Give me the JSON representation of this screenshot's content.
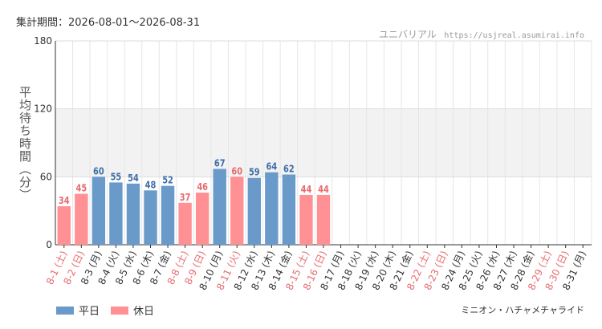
{
  "header": {
    "period_label": "集計期間：2026-08-01～2026-08-31",
    "source_name": "ユニバリアル",
    "source_url": "https://usjreal.asumirai.info"
  },
  "footer": {
    "attraction": "ミニオン・ハチャメチャライド"
  },
  "legend": [
    {
      "label": "平日",
      "color": "#6a9ac9"
    },
    {
      "label": "休日",
      "color": "#ff9093"
    }
  ],
  "colors": {
    "weekday_bar": "#6a9ac9",
    "holiday_bar": "#ff9093",
    "weekday_text": "#3f6fa6",
    "holiday_text": "#e86a6e",
    "band": "#f2f2f2",
    "grid": "#e6e6e6"
  },
  "chart_data": {
    "type": "bar",
    "ylabel": "平均待ち時間（分）",
    "xlabel": "",
    "ylim": [
      0,
      180
    ],
    "yticks": [
      0,
      60,
      120,
      180
    ],
    "shaded_band": [
      60,
      120
    ],
    "grid": true,
    "legend_position": "bottom-left",
    "categories": [
      "8-1 (土)",
      "8-2 (日)",
      "8-3 (月)",
      "8-4 (火)",
      "8-5 (水)",
      "8-6 (木)",
      "8-7 (金)",
      "8-8 (土)",
      "8-9 (日)",
      "8-10 (月)",
      "8-11 (火)",
      "8-12 (水)",
      "8-13 (木)",
      "8-14 (金)",
      "8-15 (土)",
      "8-16 (日)",
      "8-17 (月)",
      "8-18 (火)",
      "8-19 (水)",
      "8-20 (木)",
      "8-21 (金)",
      "8-22 (土)",
      "8-23 (日)",
      "8-24 (月)",
      "8-25 (火)",
      "8-26 (水)",
      "8-27 (木)",
      "8-28 (金)",
      "8-29 (土)",
      "8-30 (日)",
      "8-31 (月)"
    ],
    "holiday": [
      true,
      true,
      false,
      false,
      false,
      false,
      false,
      true,
      true,
      false,
      true,
      false,
      false,
      false,
      true,
      true,
      false,
      false,
      false,
      false,
      false,
      true,
      true,
      false,
      false,
      false,
      false,
      false,
      true,
      true,
      false
    ],
    "values": [
      34,
      45,
      60,
      55,
      54,
      48,
      52,
      37,
      46,
      67,
      60,
      59,
      64,
      62,
      44,
      44,
      null,
      null,
      null,
      null,
      null,
      null,
      null,
      null,
      null,
      null,
      null,
      null,
      null,
      null,
      null
    ]
  }
}
